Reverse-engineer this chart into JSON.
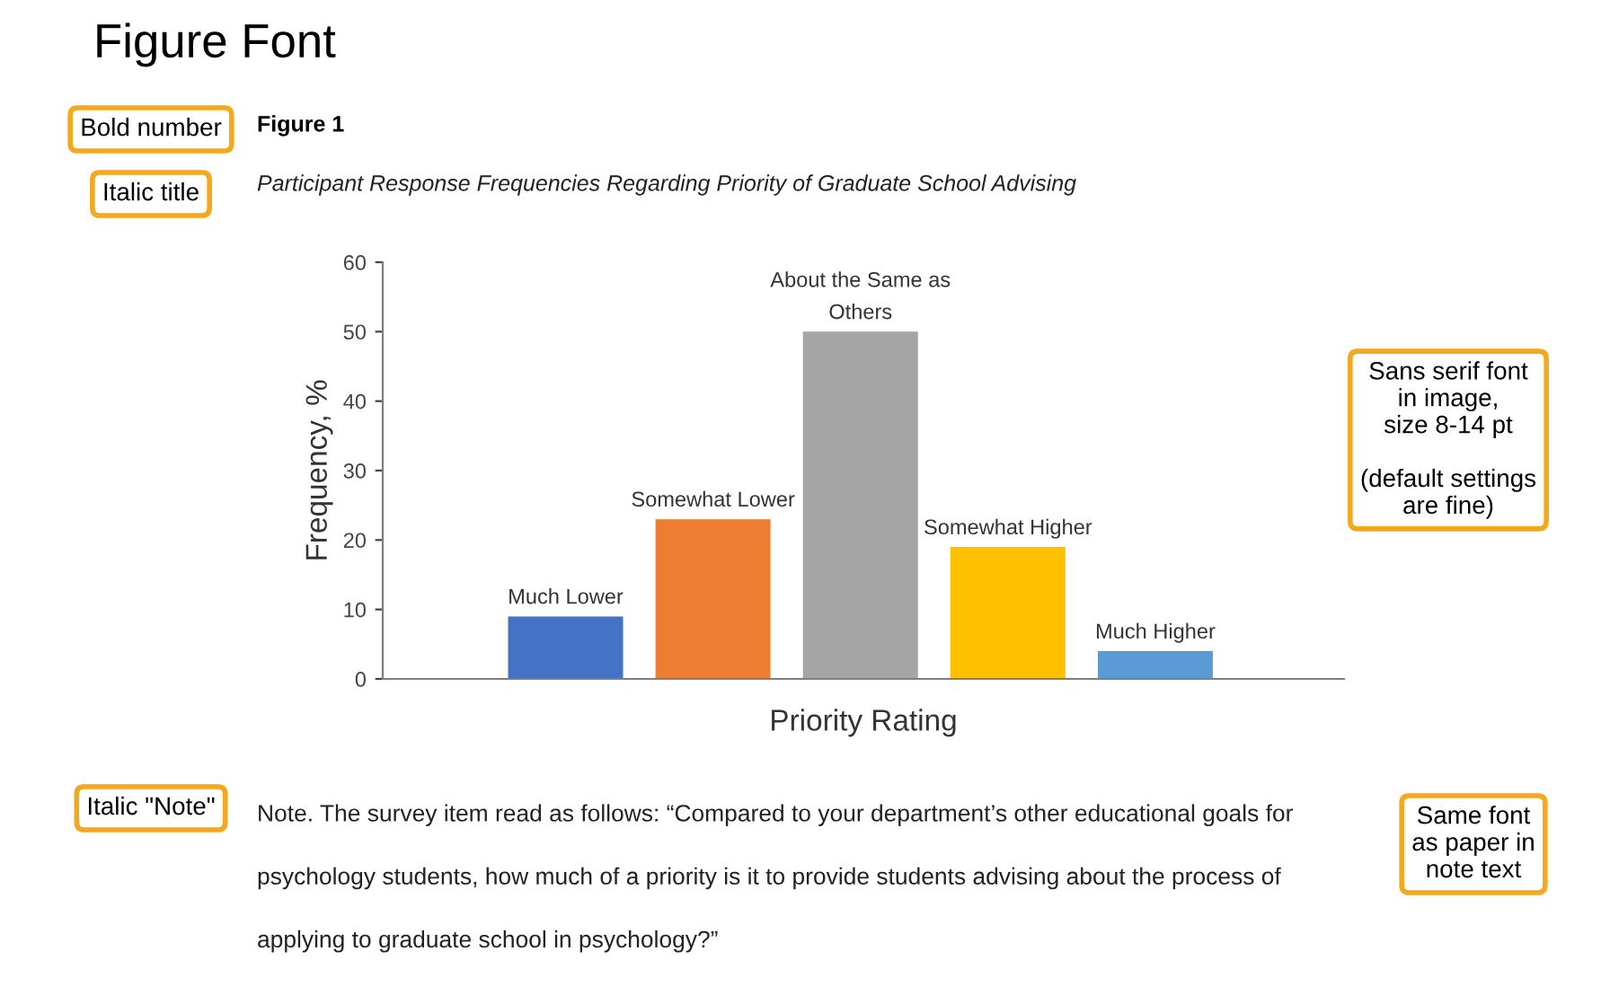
{
  "chart_data": {
    "type": "bar",
    "title": "Figure 1",
    "subtitle": "Participant Response Frequencies Regarding Priority of Graduate School Advising",
    "xlabel": "Priority Rating",
    "ylabel": "Frequency, %",
    "categories": [
      "Much Lower",
      "Somewhat Lower",
      "About the Same as\nOthers",
      "Somewhat Higher",
      "Much Higher"
    ],
    "values": [
      9,
      23,
      50,
      19,
      4
    ],
    "colors": [
      "#4472c4",
      "#ed7d31",
      "#a5a5a5",
      "#ffc000",
      "#5b9bd5"
    ],
    "ylim": [
      0,
      60
    ],
    "yticks": [
      0,
      10,
      20,
      30,
      40,
      50,
      60
    ],
    "grid": false,
    "legend": false,
    "tick_labels": "y",
    "annotations": [
      "Figure Font",
      "Bold number",
      "Italic title",
      "Sans serif font\nin image,\nsize 8-14 pt\n\n(default settings\nare fine)",
      "Italic \"Note\"",
      "Note. The survey item read as follows: “Compared to your department’s other educational goals for\n\npsychology students, how much of a priority is it to provide students advising about the process of\n\napplying to graduate school in psychology?”",
      "Same font\nas paper in\nnote text"
    ]
  }
}
